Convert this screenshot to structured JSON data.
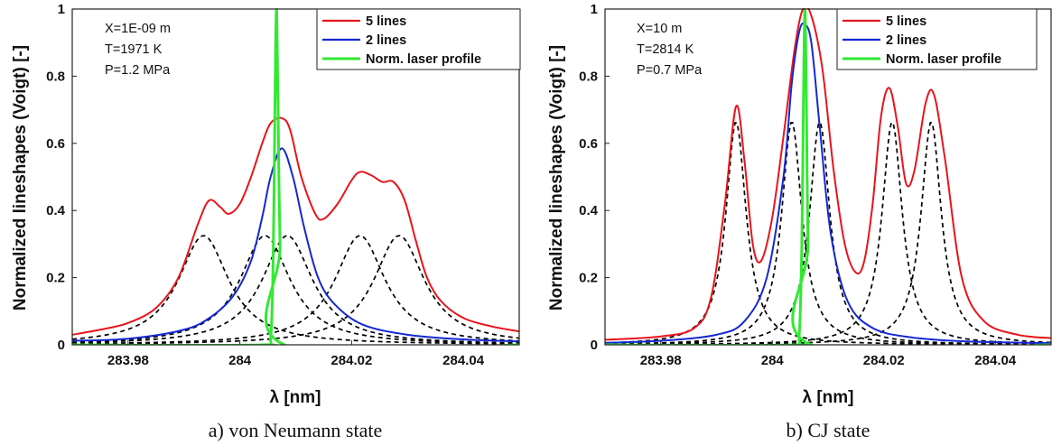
{
  "chart_data": [
    {
      "type": "line",
      "caption": "a) von Neumann state",
      "xlabel": "λ [nm]",
      "ylabel": "Normalized lineshapes (Voigt) [-]",
      "xlim": [
        283.97,
        284.05
      ],
      "ylim": [
        0,
        1
      ],
      "xticks": [
        283.98,
        284,
        284.02,
        284.04
      ],
      "xtick_labels": [
        "283.98",
        "284",
        "284.02",
        "284.04"
      ],
      "yticks": [
        0,
        0.2,
        0.4,
        0.6,
        0.8,
        1
      ],
      "ytick_labels": [
        "0",
        "0.2",
        "0.4",
        "0.6",
        "0.8",
        "1"
      ],
      "grid": false,
      "legend_position": "top-right",
      "conditions": [
        "X=1E-09 m",
        "T=1971 K",
        "P=1.2 MPa"
      ],
      "series": [
        {
          "name": "5 lines",
          "color": "#e8141c",
          "x": [
            283.97,
            283.975,
            283.98,
            283.985,
            283.989,
            283.9925,
            283.9945,
            283.9965,
            283.998,
            284.0,
            284.002,
            284.004,
            284.0055,
            284.0075,
            284.009,
            284.011,
            284.0135,
            284.015,
            284.0175,
            284.02,
            284.0215,
            284.0235,
            284.0255,
            284.0275,
            284.0295,
            284.0315,
            284.0335,
            284.036,
            284.04,
            284.045,
            284.05
          ],
          "y": [
            0.03,
            0.045,
            0.065,
            0.11,
            0.2,
            0.36,
            0.43,
            0.41,
            0.39,
            0.42,
            0.5,
            0.6,
            0.66,
            0.675,
            0.64,
            0.5,
            0.39,
            0.375,
            0.42,
            0.49,
            0.515,
            0.505,
            0.485,
            0.485,
            0.43,
            0.31,
            0.2,
            0.13,
            0.08,
            0.055,
            0.04
          ]
        },
        {
          "name": "2 lines",
          "color": "#1428d2",
          "x": [
            283.97,
            283.98,
            283.99,
            283.995,
            283.999,
            284.002,
            284.004,
            284.0055,
            284.0075,
            284.0095,
            284.0115,
            284.014,
            284.017,
            284.022,
            284.03,
            284.04,
            284.05
          ],
          "y": [
            0.012,
            0.018,
            0.045,
            0.085,
            0.15,
            0.25,
            0.38,
            0.5,
            0.585,
            0.5,
            0.35,
            0.2,
            0.12,
            0.06,
            0.03,
            0.016,
            0.01
          ]
        },
        {
          "name": "Norm. laser profile",
          "color": "#33e833",
          "x": [
            283.97,
            284.004,
            284.0055,
            284.006,
            284.0063,
            284.00655,
            284.0068,
            284.0072,
            284.008,
            284.05
          ],
          "y": [
            0,
            0,
            0.02,
            0.3,
            0.75,
            1.0,
            0.75,
            0.3,
            0,
            0
          ]
        }
      ],
      "component_lines": {
        "style": "dashed",
        "color": "#000000",
        "centers": [
          283.9935,
          284.0045,
          284.0085,
          284.0215,
          284.0285
        ],
        "peak": 0.325,
        "half_width": 0.0055
      }
    },
    {
      "type": "line",
      "caption": "b) CJ state",
      "xlabel": "λ [nm]",
      "ylabel": "Normalized lineshapes (Voigt) [-]",
      "xlim": [
        283.97,
        284.05
      ],
      "ylim": [
        0,
        1
      ],
      "xticks": [
        283.98,
        284,
        284.02,
        284.04
      ],
      "xtick_labels": [
        "283.98",
        "284",
        "284.02",
        "284.04"
      ],
      "yticks": [
        0,
        0.2,
        0.4,
        0.6,
        0.8,
        1
      ],
      "ytick_labels": [
        "0",
        "0.2",
        "0.4",
        "0.6",
        "0.8",
        "1"
      ],
      "grid": false,
      "legend_position": "top-right",
      "conditions": [
        "X=10 m",
        "T=2814 K",
        "P=0.7 MPa"
      ],
      "series": [
        {
          "name": "5 lines",
          "color": "#e8141c",
          "x": [
            283.97,
            283.98,
            283.986,
            283.989,
            283.9915,
            283.9935,
            283.995,
            283.9965,
            283.998,
            284.0,
            284.002,
            284.004,
            284.0055,
            284.007,
            284.009,
            284.011,
            284.013,
            284.015,
            284.0165,
            284.018,
            284.0195,
            284.021,
            284.0225,
            284.024,
            284.0255,
            284.0275,
            284.029,
            284.031,
            284.034,
            284.038,
            284.044,
            284.05
          ],
          "y": [
            0.015,
            0.025,
            0.05,
            0.14,
            0.42,
            0.71,
            0.55,
            0.3,
            0.25,
            0.38,
            0.62,
            0.88,
            1.0,
            0.98,
            0.82,
            0.52,
            0.3,
            0.215,
            0.25,
            0.42,
            0.68,
            0.765,
            0.65,
            0.48,
            0.52,
            0.72,
            0.745,
            0.55,
            0.2,
            0.07,
            0.03,
            0.02
          ]
        },
        {
          "name": "2 lines",
          "color": "#1428d2",
          "x": [
            283.97,
            283.98,
            283.99,
            283.995,
            283.999,
            284.002,
            284.0035,
            284.0048,
            284.0058,
            284.007,
            284.0085,
            284.0105,
            284.0135,
            284.018,
            284.025,
            284.035,
            284.05
          ],
          "y": [
            0.006,
            0.012,
            0.03,
            0.07,
            0.2,
            0.5,
            0.78,
            0.93,
            0.955,
            0.9,
            0.65,
            0.33,
            0.13,
            0.05,
            0.022,
            0.01,
            0.005
          ]
        },
        {
          "name": "Norm. laser profile",
          "color": "#33e833",
          "x": [
            283.97,
            284.004,
            284.0048,
            284.0053,
            284.0056,
            284.00585,
            284.0061,
            284.0064,
            284.007,
            284.05
          ],
          "y": [
            0,
            0,
            0.02,
            0.3,
            0.75,
            1.0,
            0.75,
            0.3,
            0,
            0
          ]
        }
      ],
      "component_lines": {
        "style": "dashed",
        "color": "#000000",
        "centers": [
          283.9935,
          284.0035,
          284.0085,
          284.0215,
          284.0285
        ],
        "peak": 0.665,
        "half_width": 0.0022
      }
    }
  ]
}
